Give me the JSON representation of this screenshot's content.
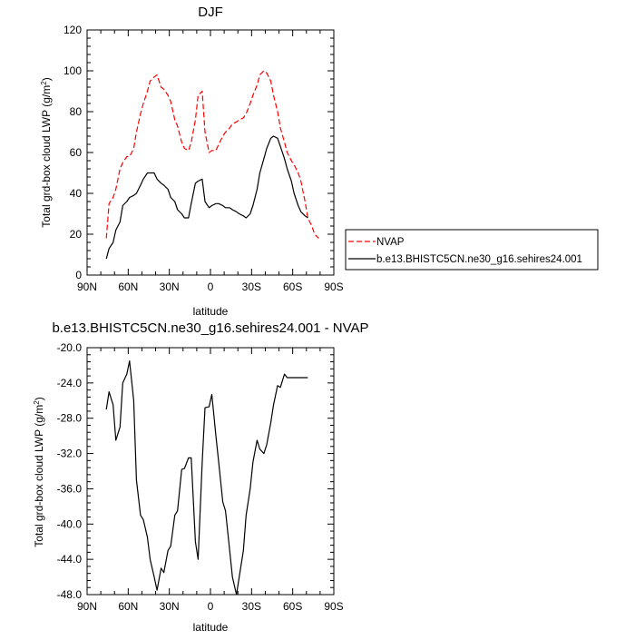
{
  "chart_data": [
    {
      "type": "line",
      "title": "DJF",
      "xlabel": "latitude",
      "ylabel_main": "Total grd-box cloud LWP (g/m",
      "ylabel_sup": "2",
      "ylabel_tail": ")",
      "xlim": [
        90,
        -90
      ],
      "ylim": [
        0,
        120
      ],
      "xticks": [
        {
          "value": 90,
          "label": "90N"
        },
        {
          "value": 60,
          "label": "60N"
        },
        {
          "value": 30,
          "label": "30N"
        },
        {
          "value": 0,
          "label": "0"
        },
        {
          "value": -30,
          "label": "30S"
        },
        {
          "value": -60,
          "label": "60S"
        },
        {
          "value": -90,
          "label": "90S"
        }
      ],
      "yticks": [
        {
          "value": 0,
          "label": "0"
        },
        {
          "value": 20,
          "label": "20"
        },
        {
          "value": 40,
          "label": "40"
        },
        {
          "value": 60,
          "label": "60"
        },
        {
          "value": 80,
          "label": "80"
        },
        {
          "value": 100,
          "label": "100"
        },
        {
          "value": 120,
          "label": "120"
        }
      ],
      "legend_position": "right",
      "series": [
        {
          "name": "NVAP",
          "color": "#ff0000",
          "dash": "dashed",
          "x": [
            76,
            74,
            71,
            69,
            66,
            64,
            61,
            59,
            56,
            54,
            51,
            49,
            46,
            44,
            41,
            39,
            36,
            34,
            31,
            29,
            26,
            24,
            21,
            19,
            16,
            14,
            11,
            9,
            6,
            4,
            1,
            -1,
            -4,
            -6,
            -9,
            -11,
            -14,
            -16,
            -19,
            -21,
            -24,
            -26,
            -29,
            -31,
            -34,
            -36,
            -39,
            -41,
            -44,
            -46,
            -49,
            -51,
            -54,
            -56,
            -59,
            -61,
            -64,
            -66,
            -69,
            -71,
            -74,
            -76,
            -79
          ],
          "y": [
            18,
            35,
            38,
            42,
            52,
            55,
            58,
            58,
            62,
            70,
            79,
            84,
            90,
            95,
            97,
            98,
            92,
            91,
            88,
            85,
            76,
            73,
            65,
            62,
            61,
            65,
            76,
            88,
            90,
            70,
            60,
            61,
            61,
            64,
            68,
            70,
            72,
            74,
            75,
            76,
            77,
            79,
            84,
            88,
            93,
            98,
            100,
            99,
            95,
            88,
            80,
            72,
            65,
            60,
            56,
            54,
            50,
            46,
            36,
            28,
            24,
            20,
            18
          ]
        },
        {
          "name": "b.e13.BHISTC5CN.ne30_g16.sehires24.001",
          "color": "#000000",
          "dash": "solid",
          "x": [
            76,
            74,
            71,
            69,
            66,
            64,
            61,
            59,
            56,
            54,
            51,
            49,
            46,
            44,
            41,
            39,
            36,
            34,
            31,
            29,
            26,
            24,
            21,
            19,
            16,
            14,
            11,
            9,
            6,
            4,
            1,
            -1,
            -4,
            -6,
            -9,
            -11,
            -14,
            -16,
            -19,
            -21,
            -24,
            -26,
            -29,
            -31,
            -34,
            -36,
            -39,
            -41,
            -44,
            -46,
            -49,
            -51,
            -54,
            -56,
            -59,
            -61,
            -64,
            -66,
            -69,
            -71
          ],
          "y": [
            8,
            13,
            16,
            22,
            26,
            34,
            36,
            38,
            39,
            40,
            44,
            47,
            50,
            50,
            50,
            47,
            45,
            44,
            42,
            38,
            36,
            32,
            30,
            28,
            28,
            35,
            45,
            46,
            47,
            36,
            33,
            34,
            35,
            35,
            34,
            33,
            33,
            32,
            31,
            30,
            29,
            28,
            30,
            34,
            42,
            50,
            57,
            62,
            67,
            68,
            67,
            63,
            57,
            52,
            46,
            40,
            34,
            31,
            29,
            28
          ]
        }
      ]
    },
    {
      "type": "line",
      "title": "b.e13.BHISTC5CN.ne30_g16.sehires24.001 - NVAP",
      "xlabel": "latitude",
      "ylabel_main": "Total grd-box cloud LWP (g/m",
      "ylabel_sup": "2",
      "ylabel_tail": ")",
      "xlim": [
        90,
        -90
      ],
      "ylim": [
        -48,
        -20
      ],
      "xticks": [
        {
          "value": 90,
          "label": "90N"
        },
        {
          "value": 60,
          "label": "60N"
        },
        {
          "value": 30,
          "label": "30N"
        },
        {
          "value": 0,
          "label": "0"
        },
        {
          "value": -30,
          "label": "30S"
        },
        {
          "value": -60,
          "label": "60S"
        },
        {
          "value": -90,
          "label": "90S"
        }
      ],
      "yticks": [
        {
          "value": -48,
          "label": "-48.0"
        },
        {
          "value": -44,
          "label": "-44.0"
        },
        {
          "value": -40,
          "label": "-40.0"
        },
        {
          "value": -36,
          "label": "-36.0"
        },
        {
          "value": -32,
          "label": "-32.0"
        },
        {
          "value": -28,
          "label": "-28.0"
        },
        {
          "value": -24,
          "label": "-24.0"
        },
        {
          "value": -20,
          "label": "-20.0"
        }
      ],
      "series": [
        {
          "name": "",
          "color": "#000000",
          "dash": "solid",
          "x": [
            76,
            74,
            71,
            69,
            66,
            64,
            61,
            59,
            56,
            54,
            51,
            49,
            46,
            44,
            41,
            39,
            36,
            34,
            31,
            29,
            26,
            24,
            21,
            19,
            16,
            14,
            11,
            9,
            6,
            4,
            1,
            -1,
            -4,
            -6,
            -9,
            -11,
            -14,
            -16,
            -19,
            -21,
            -24,
            -26,
            -29,
            -31,
            -34,
            -36,
            -39,
            -41,
            -44,
            -46,
            -49,
            -51,
            -54,
            -56,
            -59,
            -61,
            -64,
            -66,
            -69,
            -71
          ],
          "y": [
            -27.0,
            -25.0,
            -26.5,
            -30.5,
            -29.0,
            -24.0,
            -23.0,
            -21.5,
            -26.0,
            -35.0,
            -39.0,
            -39.5,
            -41.5,
            -44.0,
            -46.0,
            -47.5,
            -45.0,
            -45.5,
            -43.0,
            -42.5,
            -39.0,
            -38.5,
            -33.8,
            -33.7,
            -32.5,
            -32.5,
            -42.0,
            -44.0,
            -33.0,
            -26.8,
            -26.7,
            -25.3,
            -30.0,
            -33.0,
            -37.5,
            -38.5,
            -43.0,
            -46.0,
            -48.0,
            -46.0,
            -43.0,
            -39.0,
            -36.0,
            -33.0,
            -30.5,
            -31.5,
            -32.0,
            -31.0,
            -28.5,
            -26.5,
            -24.3,
            -24.5,
            -23.0,
            -23.4,
            -23.4,
            -23.4,
            -23.4,
            -23.4,
            -23.4,
            -23.4
          ]
        }
      ]
    }
  ]
}
